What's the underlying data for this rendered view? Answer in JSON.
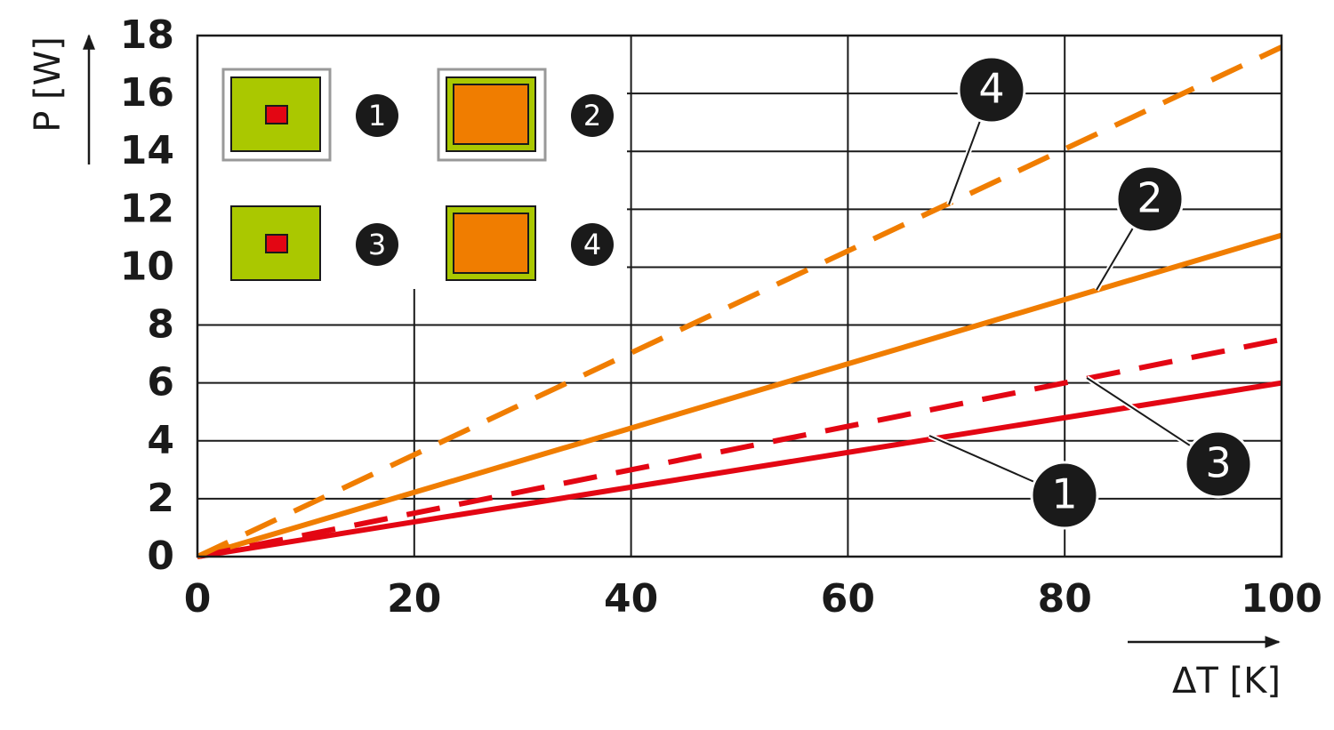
{
  "chart_data": {
    "type": "line",
    "x_label": "ΔT [K]",
    "y_label": "P [W]",
    "x": [
      0,
      100
    ],
    "series": [
      {
        "name": "1",
        "color": "#e30613",
        "line_style": "solid",
        "values": [
          0,
          6
        ]
      },
      {
        "name": "2",
        "color": "#f07d00",
        "line_style": "solid",
        "values": [
          0,
          11.1
        ]
      },
      {
        "name": "3",
        "color": "#e30613",
        "line_style": "dashed",
        "values": [
          0,
          7.5
        ]
      },
      {
        "name": "4",
        "color": "#f07d00",
        "line_style": "dashed",
        "values": [
          0,
          17.6
        ]
      }
    ],
    "xlim": [
      0,
      100
    ],
    "xticks": [
      0,
      20,
      40,
      60,
      80,
      100
    ],
    "ylim": [
      0,
      18
    ],
    "yticks": [
      0,
      2,
      4,
      6,
      8,
      10,
      12,
      14,
      16,
      18
    ],
    "grid": true
  }
}
